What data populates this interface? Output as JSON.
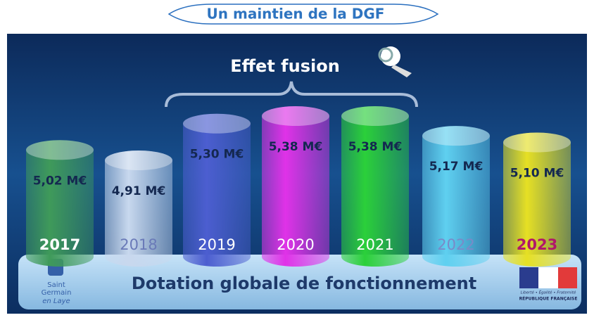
{
  "chart_data": {
    "type": "bar",
    "title": "Un maintien de la DGF",
    "annotation": "Effet fusion",
    "base_label": "Dotation globale de fonctionnement",
    "categories": [
      "2017",
      "2018",
      "2019",
      "2020",
      "2021",
      "2022",
      "2023"
    ],
    "values": [
      5.02,
      4.91,
      5.3,
      5.38,
      5.38,
      5.17,
      5.1
    ],
    "value_labels": [
      "5,02 M€",
      "4,91 M€",
      "5,30 M€",
      "5,38 M€",
      "5,38 M€",
      "5,17 M€",
      "5,10 M€"
    ],
    "colors": [
      "#3f9a5a",
      "#c8d8ee",
      "#4c5ed0",
      "#e032e8",
      "#2bd03a",
      "#5fd0f0",
      "#e6e024"
    ],
    "label_colors": [
      "#ffffff",
      "#6a7ab8",
      "#ffffff",
      "#ffffff",
      "#ffffff",
      "#7a8ac8",
      "#b0186a"
    ],
    "logo_left": [
      "Saint",
      "Germain",
      "en Laye"
    ],
    "logo_right": [
      "Liberté • Égalité • Fraternité",
      "RÉPUBLIQUE FRANÇAISE"
    ]
  }
}
